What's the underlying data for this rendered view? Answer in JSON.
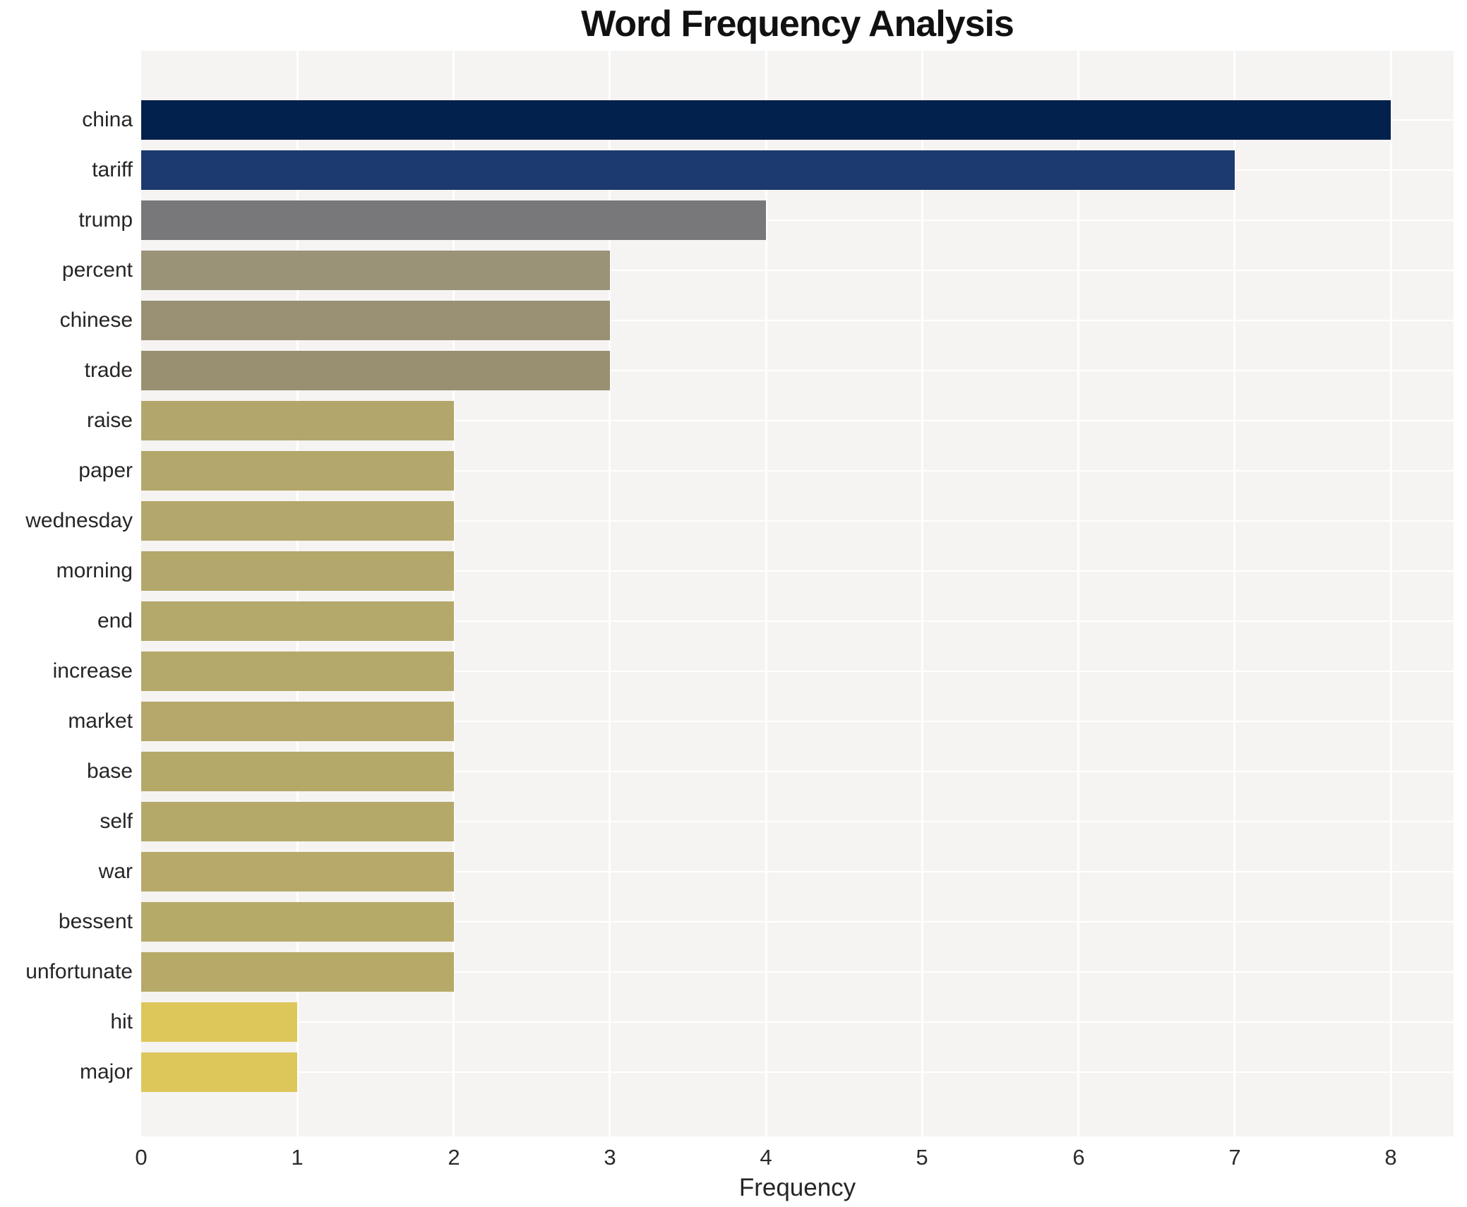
{
  "chart_data": {
    "type": "bar",
    "orientation": "horizontal",
    "title": "Word Frequency Analysis",
    "xlabel": "Frequency",
    "ylabel": "",
    "xlim": [
      0,
      8
    ],
    "x_ticks": [
      0,
      1,
      2,
      3,
      4,
      5,
      6,
      7,
      8
    ],
    "grid": true,
    "legend_position": "none",
    "categories": [
      "china",
      "tariff",
      "trump",
      "percent",
      "chinese",
      "trade",
      "raise",
      "paper",
      "wednesday",
      "morning",
      "end",
      "increase",
      "market",
      "base",
      "self",
      "war",
      "bessent",
      "unfortunate",
      "hit",
      "major"
    ],
    "values": [
      8,
      7,
      4,
      3,
      3,
      3,
      2,
      2,
      2,
      2,
      2,
      2,
      2,
      2,
      2,
      2,
      2,
      2,
      1,
      1
    ],
    "bar_colors": [
      "#03214d",
      "#1d3a6e",
      "#78787a",
      "#9b9377",
      "#9a9175",
      "#989070",
      "#b2a66c",
      "#b3a76b",
      "#b3a76b",
      "#b4a76b",
      "#b4a86b",
      "#b4a86b",
      "#b5a86a",
      "#b5a96a",
      "#b5a96a",
      "#b6a96a",
      "#b6aa69",
      "#b7aa69",
      "#ddc75b",
      "#ddc75b"
    ],
    "colors": {
      "plot_background": "#f5f4f2",
      "grid_color": "#ffffff",
      "title_color": "#111111",
      "label_color": "#262626",
      "tick_color": "#2b2b2b"
    }
  }
}
